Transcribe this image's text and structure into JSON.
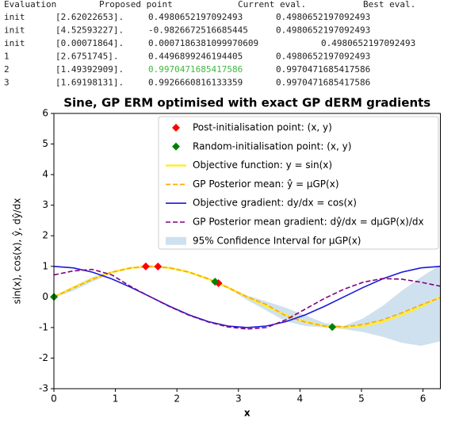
{
  "table": {
    "header": [
      "Evaluation",
      "Proposed point",
      "Current eval.",
      "Best eval."
    ],
    "rows": [
      [
        "init",
        "[2.62022653].",
        "0.4980652197092493",
        "0.4980652197092493"
      ],
      [
        "init",
        "[4.52593227].",
        "-0.9826672516685445",
        "0.4980652197092493"
      ],
      [
        "init",
        "[0.00071864].",
        "0.0007186381099970609",
        "0.4980652197092493"
      ],
      [
        "1",
        "[2.6751745].",
        "0.4496899246194405",
        "0.4980652197092493"
      ],
      [
        "2",
        "[1.49392909].",
        "0.9970471685417586",
        "0.9970471685417586"
      ],
      [
        "3",
        "[1.69198131].",
        "0.9926660816133359",
        "0.9970471685417586"
      ]
    ],
    "highlight_color": "#3fb83f"
  },
  "chart_data": {
    "type": "line",
    "title": "Sine, GP ERM optimised with exact GP dERM gradients",
    "xlabel": "x",
    "ylabel": "sin(x), cos(x), ŷ, dŷ/dx",
    "xlim": [
      0,
      6.283185
    ],
    "ylim": [
      -3,
      6
    ],
    "xticks": [
      0,
      1,
      2,
      3,
      4,
      5,
      6
    ],
    "yticks": [
      -3,
      -2,
      -1,
      0,
      1,
      2,
      3,
      4,
      5,
      6
    ],
    "legend": "upper right",
    "series": [
      {
        "name": "Post-initialisation point: (x, y)",
        "kind": "scatter",
        "marker": "diamond",
        "color": "#ff0000",
        "x": [
          1.49392909,
          1.69198131,
          2.6751745
        ],
        "values": [
          0.9970471685417586,
          0.9926660816133359,
          0.4496899246194405
        ]
      },
      {
        "name": "Random-initialisation point: (x, y)",
        "kind": "scatter",
        "marker": "diamond",
        "color": "#008000",
        "x": [
          0.00071864,
          4.52593227,
          2.62022653
        ],
        "values": [
          0.0007186381099970609,
          -0.9826672516685445,
          0.4980652197092493
        ]
      },
      {
        "name": "Objective function: y = sin(x)",
        "kind": "line",
        "dash": false,
        "color": "#ffee33",
        "x": [
          0,
          0.314,
          0.628,
          0.942,
          1.257,
          1.571,
          1.885,
          2.199,
          2.513,
          2.827,
          3.142,
          3.456,
          3.77,
          4.084,
          4.398,
          4.712,
          5.027,
          5.341,
          5.655,
          5.969,
          6.283
        ],
        "values": [
          0,
          0.309,
          0.588,
          0.809,
          0.951,
          1,
          0.951,
          0.809,
          0.588,
          0.309,
          0,
          -0.309,
          -0.588,
          -0.809,
          -0.951,
          -1,
          -0.951,
          -0.809,
          -0.588,
          -0.309,
          0
        ]
      },
      {
        "name": "GP Posterior mean: ŷ = μGP(x)",
        "kind": "line",
        "dash": true,
        "color": "#ffa500",
        "x": [
          0,
          0.314,
          0.628,
          0.942,
          1.257,
          1.571,
          1.885,
          2.199,
          2.513,
          2.827,
          3.142,
          3.456,
          3.77,
          4.084,
          4.398,
          4.712,
          5.027,
          5.341,
          5.655,
          5.969,
          6.283
        ],
        "values": [
          0,
          0.29,
          0.58,
          0.81,
          0.95,
          1,
          0.95,
          0.81,
          0.59,
          0.31,
          0.0,
          -0.25,
          -0.62,
          -0.82,
          -0.95,
          -0.98,
          -0.9,
          -0.75,
          -0.52,
          -0.26,
          -0.02
        ]
      },
      {
        "name": "Objective gradient: dy/dx = cos(x)",
        "kind": "line",
        "dash": false,
        "color": "#1a1adb",
        "x": [
          0,
          0.314,
          0.628,
          0.942,
          1.257,
          1.571,
          1.885,
          2.199,
          2.513,
          2.827,
          3.142,
          3.456,
          3.77,
          4.084,
          4.398,
          4.712,
          5.027,
          5.341,
          5.655,
          5.969,
          6.283
        ],
        "values": [
          1,
          0.951,
          0.809,
          0.588,
          0.309,
          0,
          -0.309,
          -0.588,
          -0.809,
          -0.951,
          -1,
          -0.951,
          -0.809,
          -0.588,
          -0.309,
          0,
          0.309,
          0.588,
          0.809,
          0.951,
          1
        ]
      },
      {
        "name": "GP Posterior mean gradient: dŷ/dx = dμGP(x)/dx",
        "kind": "line",
        "dash": true,
        "color": "#800080",
        "x": [
          0,
          0.314,
          0.628,
          0.942,
          1.257,
          1.571,
          1.885,
          2.199,
          2.513,
          2.827,
          3.142,
          3.456,
          3.77,
          4.084,
          4.398,
          4.712,
          5.027,
          5.341,
          5.655,
          5.969,
          6.283
        ],
        "values": [
          0.72,
          0.85,
          0.9,
          0.72,
          0.33,
          0,
          -0.32,
          -0.6,
          -0.82,
          -0.98,
          -1.05,
          -1.0,
          -0.75,
          -0.4,
          -0.05,
          0.25,
          0.48,
          0.6,
          0.58,
          0.48,
          0.35
        ]
      },
      {
        "name": "95% Confidence Interval for μGP(x)",
        "kind": "band",
        "color": "#a8c8e0",
        "x": [
          0,
          0.314,
          0.628,
          0.942,
          1.257,
          1.571,
          1.885,
          2.199,
          2.513,
          2.827,
          3.142,
          3.456,
          3.77,
          4.084,
          4.398,
          4.712,
          5.027,
          5.341,
          5.655,
          5.969,
          6.283
        ],
        "lower": [
          -0.02,
          0.2,
          0.5,
          0.77,
          0.93,
          0.98,
          0.93,
          0.79,
          0.57,
          0.28,
          -0.1,
          -0.45,
          -0.8,
          -0.95,
          -1.0,
          -1.05,
          -1.15,
          -1.3,
          -1.5,
          -1.6,
          -1.45
        ],
        "upper": [
          0.02,
          0.35,
          0.65,
          0.84,
          0.97,
          1.02,
          0.97,
          0.83,
          0.61,
          0.33,
          0.05,
          -0.15,
          -0.35,
          -0.6,
          -0.85,
          -0.95,
          -0.7,
          -0.3,
          0.2,
          0.65,
          1.05
        ]
      }
    ]
  }
}
